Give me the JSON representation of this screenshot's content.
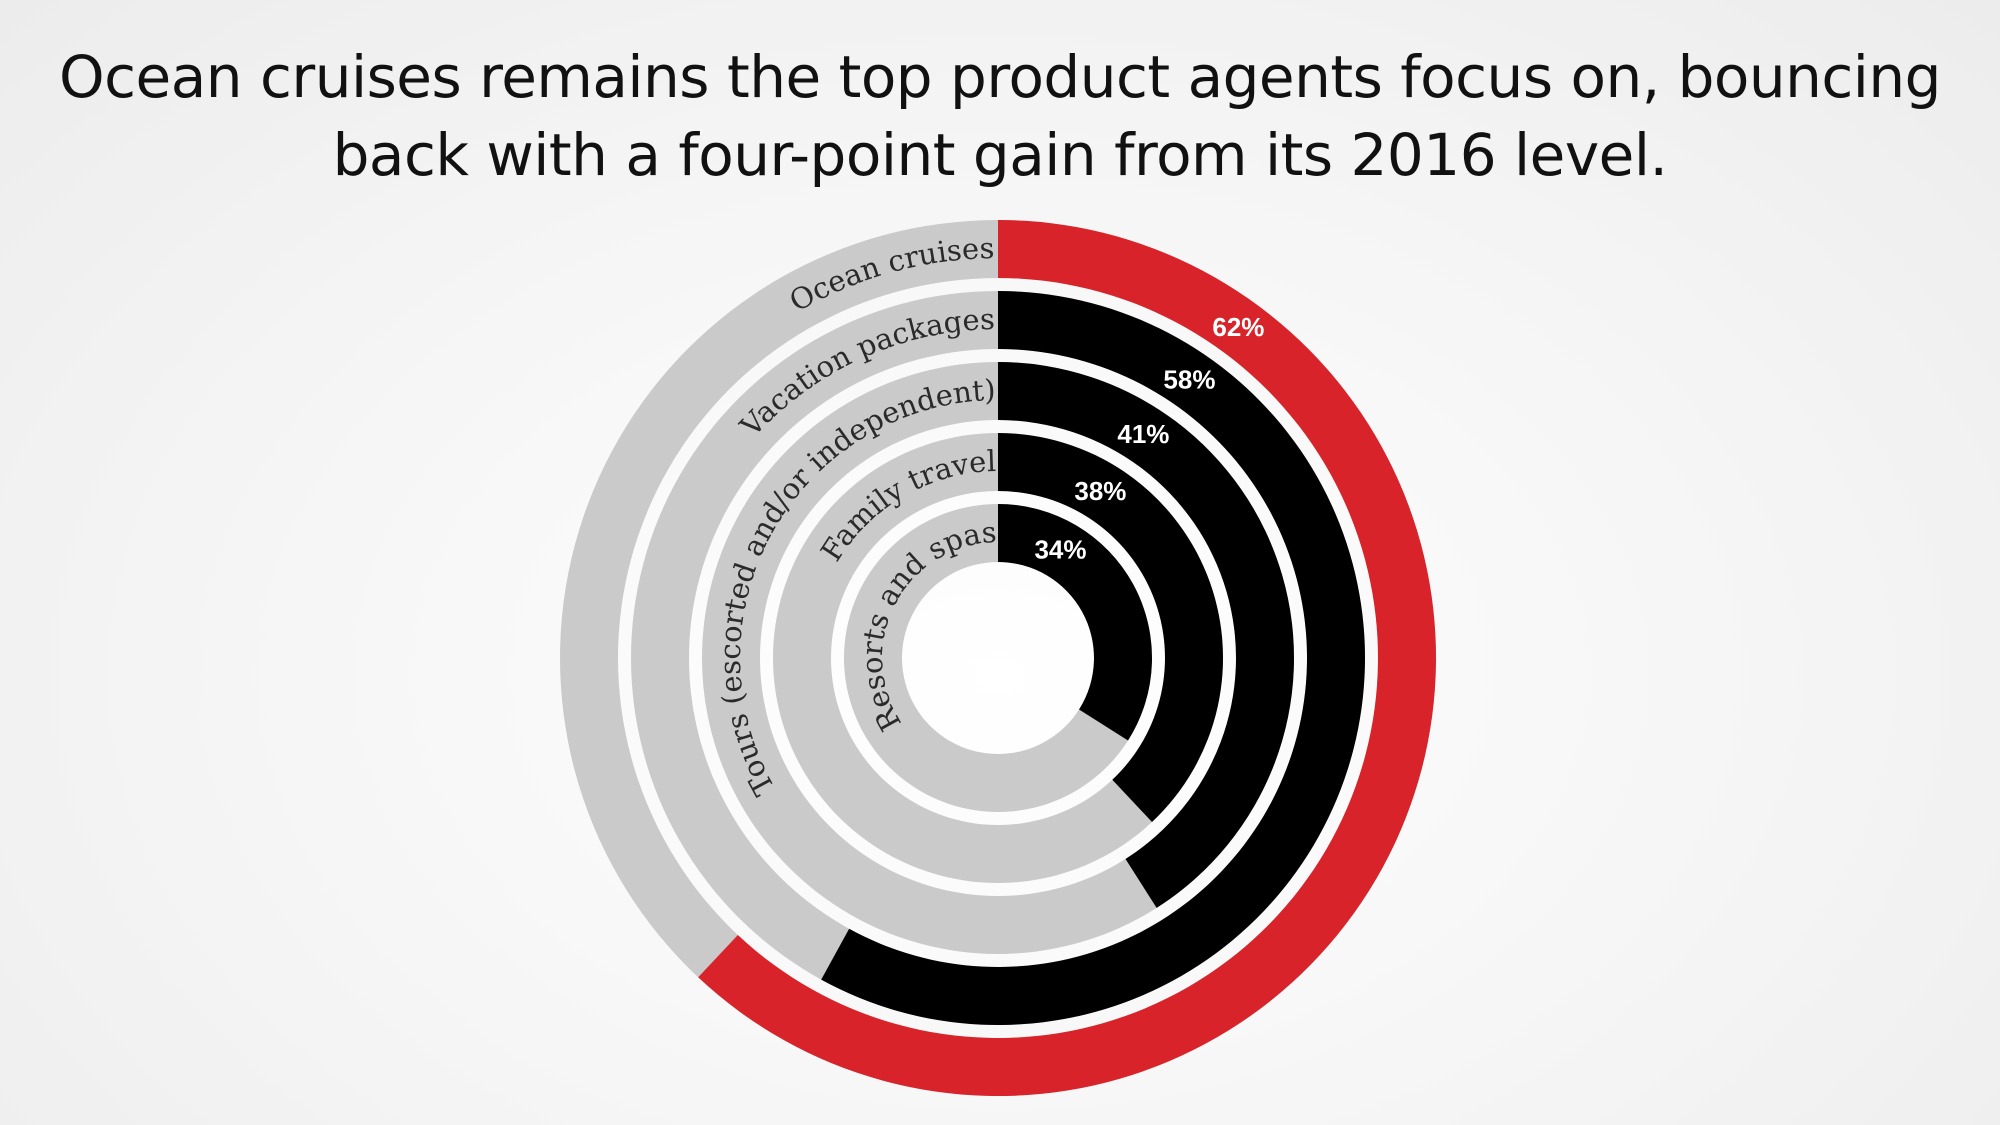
{
  "title": {
    "line1": "Ocean cruises remains the top product agents focus on, bouncing",
    "line2": "back with a four-point gain from its 2016 level."
  },
  "colors": {
    "highlight": "#d9232a",
    "bar": "#000000",
    "track": "#cbcacb"
  },
  "chart_data": {
    "type": "radial-bar",
    "categories": [
      "Ocean cruises",
      "Vacation packages",
      "Tours (escorted and/or independent)",
      "Family travel",
      "Resorts and spas"
    ],
    "values": [
      62,
      58,
      41,
      38,
      34
    ],
    "value_labels": [
      "62%",
      "58%",
      "41%",
      "38%",
      "34%"
    ],
    "unit": "%",
    "max": 100,
    "highlighted_category": "Ocean cruises"
  }
}
